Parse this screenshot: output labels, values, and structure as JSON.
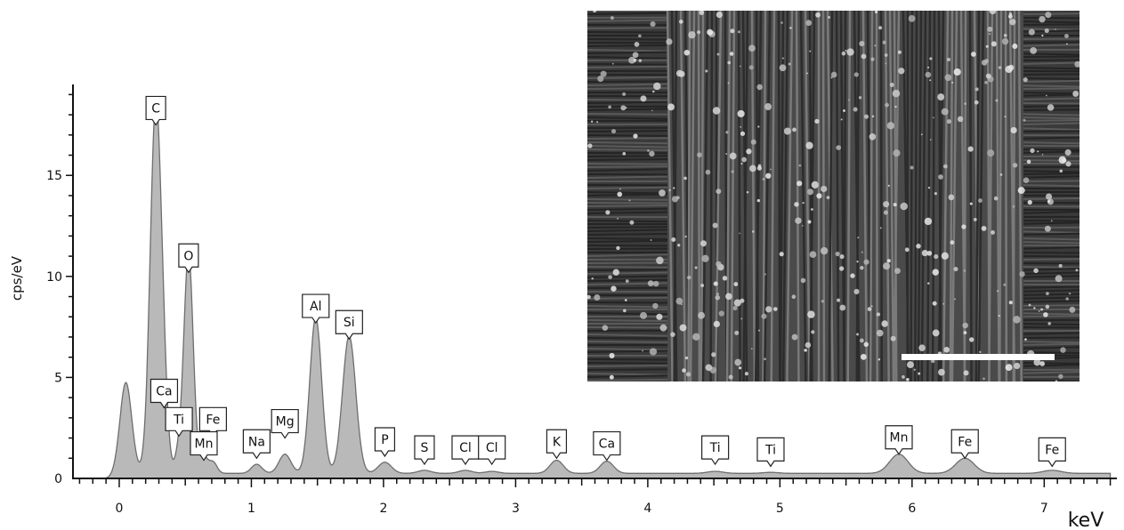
{
  "chart_data": {
    "type": "area",
    "xlabel": "keV",
    "ylabel": "cps/eV",
    "xlim": [
      -0.35,
      7.55
    ],
    "ylim": [
      0,
      19.5
    ],
    "x_ticks": [
      0,
      1,
      2,
      3,
      4,
      5,
      6,
      7
    ],
    "x_tick_labels": [
      "0",
      "1",
      "2",
      "3",
      "4",
      "5",
      "6",
      "7"
    ],
    "y_ticks": [
      0,
      5,
      10,
      15
    ],
    "y_tick_labels": [
      "0",
      "5",
      "10",
      "15"
    ],
    "grid": false,
    "fill_color": "#b9b9b9",
    "line_color": "#6e6e6e",
    "background": 0.25,
    "peaks": [
      {
        "x": 0.05,
        "y": 4.5,
        "w": 0.045
      },
      {
        "x": 0.277,
        "y": 18.3,
        "w": 0.042
      },
      {
        "x": 0.34,
        "y": 2.2,
        "w": 0.03
      },
      {
        "x": 0.452,
        "y": 1.0,
        "w": 0.03
      },
      {
        "x": 0.525,
        "y": 10.9,
        "w": 0.035
      },
      {
        "x": 0.64,
        "y": 0.8,
        "w": 0.03
      },
      {
        "x": 0.71,
        "y": 0.55,
        "w": 0.03
      },
      {
        "x": 1.04,
        "y": 0.45,
        "w": 0.04
      },
      {
        "x": 1.254,
        "y": 0.95,
        "w": 0.045
      },
      {
        "x": 1.487,
        "y": 7.7,
        "w": 0.045
      },
      {
        "x": 1.74,
        "y": 6.8,
        "w": 0.05
      },
      {
        "x": 2.01,
        "y": 0.55,
        "w": 0.05
      },
      {
        "x": 2.31,
        "y": 0.15,
        "w": 0.05
      },
      {
        "x": 2.62,
        "y": 0.15,
        "w": 0.05
      },
      {
        "x": 2.82,
        "y": 0.1,
        "w": 0.05
      },
      {
        "x": 3.31,
        "y": 0.65,
        "w": 0.05
      },
      {
        "x": 3.69,
        "y": 0.6,
        "w": 0.05
      },
      {
        "x": 4.51,
        "y": 0.1,
        "w": 0.06
      },
      {
        "x": 4.93,
        "y": 0.05,
        "w": 0.06
      },
      {
        "x": 5.9,
        "y": 0.95,
        "w": 0.07
      },
      {
        "x": 6.4,
        "y": 0.75,
        "w": 0.07
      },
      {
        "x": 7.06,
        "y": 0.15,
        "w": 0.07
      }
    ],
    "annotations": [
      {
        "label": "C",
        "x": 0.277,
        "y": 18.3
      },
      {
        "label": "O",
        "x": 0.525,
        "y": 10.9
      },
      {
        "label": "Ca",
        "x": 0.34,
        "y": 2.2
      },
      {
        "label": "Ti",
        "x": 0.452,
        "y": 1.0
      },
      {
        "label": "Fe",
        "x": 0.71,
        "y": 0.55
      },
      {
        "label": "Mn",
        "x": 0.64,
        "y": 0.8
      },
      {
        "label": "Na",
        "x": 1.04,
        "y": 0.45
      },
      {
        "label": "Mg",
        "x": 1.254,
        "y": 0.95
      },
      {
        "label": "Al",
        "x": 1.487,
        "y": 7.7
      },
      {
        "label": "Si",
        "x": 1.74,
        "y": 6.8
      },
      {
        "label": "P",
        "x": 2.01,
        "y": 0.55
      },
      {
        "label": "S",
        "x": 2.31,
        "y": 0.4
      },
      {
        "label": "Cl",
        "x": 2.62,
        "y": 0.4
      },
      {
        "label": "Cl",
        "x": 2.82,
        "y": 0.35
      },
      {
        "label": "K",
        "x": 3.31,
        "y": 0.65
      },
      {
        "label": "Ca",
        "x": 3.69,
        "y": 0.6
      },
      {
        "label": "Ti",
        "x": 4.51,
        "y": 0.3
      },
      {
        "label": "Ti",
        "x": 4.93,
        "y": 0.3
      },
      {
        "label": "Mn",
        "x": 5.9,
        "y": 0.95
      },
      {
        "label": "Fe",
        "x": 6.4,
        "y": 0.75
      },
      {
        "label": "Fe",
        "x": 7.06,
        "y": 0.3
      }
    ]
  },
  "inset": {
    "description_icon": "sem-micrograph-image",
    "scale_bar_color": "#ffffff"
  }
}
